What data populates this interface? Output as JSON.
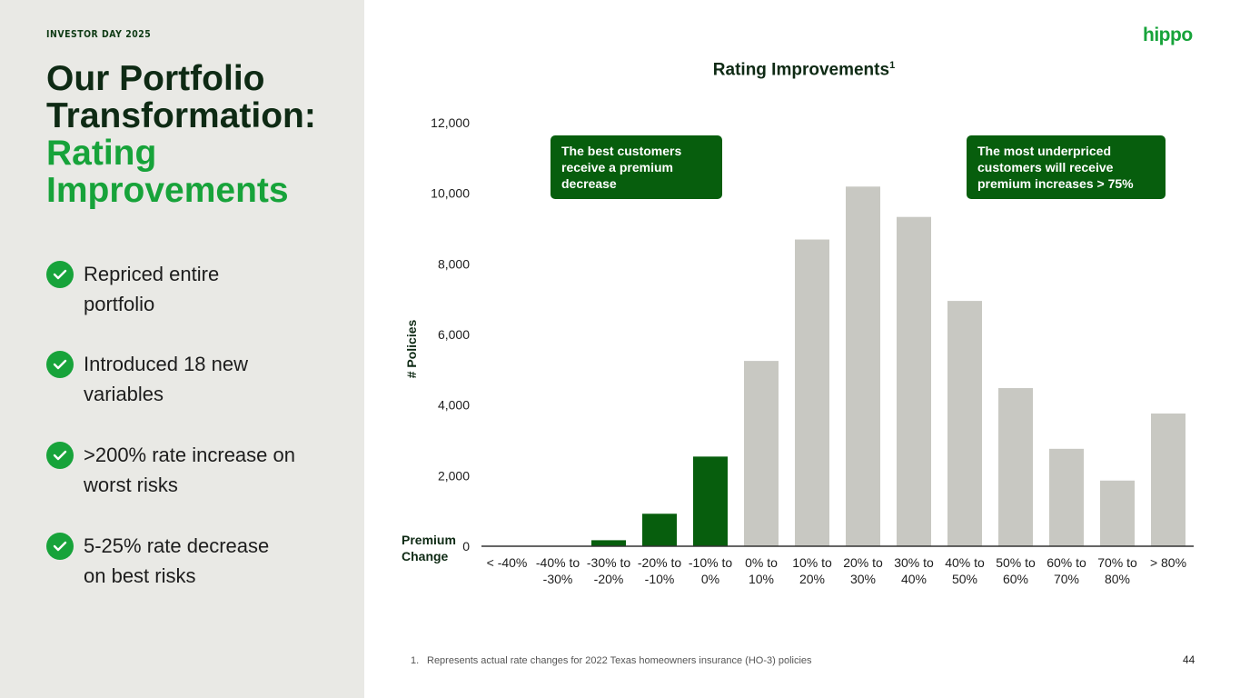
{
  "header": {
    "event_label": "INVESTOR DAY 2025",
    "logo_text": "hippo"
  },
  "title": {
    "line1": "Our Portfolio",
    "line2": "Transformation:",
    "line3": "Rating",
    "line4": "Improvements"
  },
  "bullets": [
    {
      "icon": "check-icon",
      "text_line1": "Repriced entire",
      "text_line2": "portfolio"
    },
    {
      "icon": "check-icon",
      "text_line1": "Introduced 18 new",
      "text_line2": "variables"
    },
    {
      "icon": "check-icon",
      "text_line1": ">200% rate increase on",
      "text_line2": "worst risks"
    },
    {
      "icon": "check-icon",
      "text_line1": "5-25% rate decrease",
      "text_line2": "on best risks"
    }
  ],
  "callouts": {
    "left": [
      "The best customers",
      "receive a premium",
      "decrease"
    ],
    "right": [
      "The most underpriced",
      "customers will receive",
      "premium increases > 75%"
    ]
  },
  "footnote": {
    "number": "1.",
    "text": "Represents actual rate changes for 2022 Texas homeowners insurance (HO-3) policies"
  },
  "page_number": "44",
  "colors": {
    "accent_green": "#17a33a",
    "dark_green": "#075e0d",
    "gray_bar": "#c8c8c2",
    "left_panel": "#e9e9e5"
  },
  "chart_data": {
    "type": "bar",
    "title": "Rating Improvements",
    "title_superscript": "1",
    "xlabel": "Premium Change",
    "ylabel": "# Policies",
    "ylim": [
      0,
      12000
    ],
    "yticks": [
      0,
      2000,
      4000,
      6000,
      8000,
      10000,
      12000
    ],
    "ytick_labels": [
      "0",
      "2,000",
      "4,000",
      "6,000",
      "8,000",
      "10,000",
      "12,000"
    ],
    "grid": false,
    "categories": [
      [
        "< -40%"
      ],
      [
        "-40% to",
        "-30%"
      ],
      [
        "-30% to",
        "-20%"
      ],
      [
        "-20% to",
        "-10%"
      ],
      [
        "-10% to",
        "0%"
      ],
      [
        "0% to",
        "10%"
      ],
      [
        "10% to",
        "20%"
      ],
      [
        "20% to",
        "30%"
      ],
      [
        "30% to",
        "40%"
      ],
      [
        "40% to",
        "50%"
      ],
      [
        "50% to",
        "60%"
      ],
      [
        "60% to",
        "70%"
      ],
      [
        "70% to",
        "80%"
      ],
      [
        "> 80%"
      ]
    ],
    "values": [
      0,
      0,
      170,
      920,
      2540,
      5250,
      8690,
      10190,
      9330,
      6950,
      4480,
      2760,
      1860,
      3760
    ],
    "bar_colors": [
      "#075e0d",
      "#075e0d",
      "#075e0d",
      "#075e0d",
      "#075e0d",
      "#c8c8c2",
      "#c8c8c2",
      "#c8c8c2",
      "#c8c8c2",
      "#c8c8c2",
      "#c8c8c2",
      "#c8c8c2",
      "#c8c8c2",
      "#c8c8c2"
    ]
  }
}
